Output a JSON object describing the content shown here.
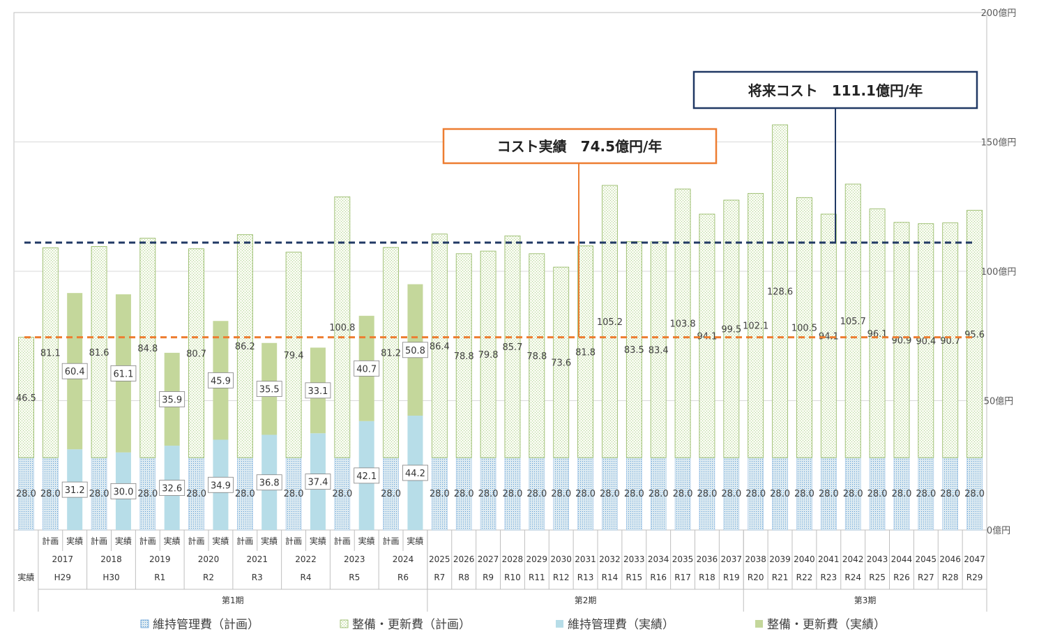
{
  "chart_data": {
    "type": "bar",
    "y_axis": {
      "ylim": [
        0,
        200
      ],
      "ticks": [
        0,
        50,
        100,
        150,
        200
      ],
      "tick_labels": [
        "0億円",
        "50億円",
        "100億円",
        "150億円",
        "200億円"
      ],
      "grid": true
    },
    "columns": [
      {
        "kind": "実績",
        "year": "",
        "era": "",
        "maint": 28.0,
        "renew": 46.5,
        "actual": false
      },
      {
        "kind": "計画",
        "year": "2017",
        "era": "H29",
        "maint": 28.0,
        "renew": 81.1,
        "actual": false
      },
      {
        "kind": "実績",
        "year": "2017",
        "era": "H29",
        "maint": 31.2,
        "renew": 60.4,
        "actual": true
      },
      {
        "kind": "計画",
        "year": "2018",
        "era": "H30",
        "maint": 28.0,
        "renew": 81.6,
        "actual": false
      },
      {
        "kind": "実績",
        "year": "2018",
        "era": "H30",
        "maint": 30.0,
        "renew": 61.1,
        "actual": true
      },
      {
        "kind": "計画",
        "year": "2019",
        "era": "R1",
        "maint": 28.0,
        "renew": 84.8,
        "actual": false
      },
      {
        "kind": "実績",
        "year": "2019",
        "era": "R1",
        "maint": 32.6,
        "renew": 35.9,
        "actual": true
      },
      {
        "kind": "計画",
        "year": "2020",
        "era": "R2",
        "maint": 28.0,
        "renew": 80.7,
        "actual": false
      },
      {
        "kind": "実績",
        "year": "2020",
        "era": "R2",
        "maint": 34.9,
        "renew": 45.9,
        "actual": true
      },
      {
        "kind": "計画",
        "year": "2021",
        "era": "R3",
        "maint": 28.0,
        "renew": 86.2,
        "actual": false
      },
      {
        "kind": "実績",
        "year": "2021",
        "era": "R3",
        "maint": 36.8,
        "renew": 35.5,
        "actual": true
      },
      {
        "kind": "計画",
        "year": "2022",
        "era": "R4",
        "maint": 28.0,
        "renew": 79.4,
        "actual": false
      },
      {
        "kind": "実績",
        "year": "2022",
        "era": "R4",
        "maint": 37.4,
        "renew": 33.1,
        "actual": true
      },
      {
        "kind": "計画",
        "year": "2023",
        "era": "R5",
        "maint": 28.0,
        "renew": 100.8,
        "actual": false
      },
      {
        "kind": "実績",
        "year": "2023",
        "era": "R5",
        "maint": 42.1,
        "renew": 40.7,
        "actual": true
      },
      {
        "kind": "計画",
        "year": "2024",
        "era": "R6",
        "maint": 28.0,
        "renew": 81.2,
        "actual": false
      },
      {
        "kind": "実績",
        "year": "2024",
        "era": "R6",
        "maint": 44.2,
        "renew": 50.8,
        "actual": true
      },
      {
        "kind": "",
        "year": "2025",
        "era": "R7",
        "maint": 28.0,
        "renew": 86.4,
        "actual": false
      },
      {
        "kind": "",
        "year": "2026",
        "era": "R8",
        "maint": 28.0,
        "renew": 78.8,
        "actual": false
      },
      {
        "kind": "",
        "year": "2027",
        "era": "R9",
        "maint": 28.0,
        "renew": 79.8,
        "actual": false
      },
      {
        "kind": "",
        "year": "2028",
        "era": "R10",
        "maint": 28.0,
        "renew": 85.7,
        "actual": false
      },
      {
        "kind": "",
        "year": "2029",
        "era": "R11",
        "maint": 28.0,
        "renew": 78.8,
        "actual": false
      },
      {
        "kind": "",
        "year": "2030",
        "era": "R12",
        "maint": 28.0,
        "renew": 73.6,
        "actual": false
      },
      {
        "kind": "",
        "year": "2031",
        "era": "R13",
        "maint": 28.0,
        "renew": 81.8,
        "actual": false
      },
      {
        "kind": "",
        "year": "2032",
        "era": "R14",
        "maint": 28.0,
        "renew": 105.2,
        "actual": false
      },
      {
        "kind": "",
        "year": "2033",
        "era": "R15",
        "maint": 28.0,
        "renew": 83.5,
        "actual": false
      },
      {
        "kind": "",
        "year": "2034",
        "era": "R16",
        "maint": 28.0,
        "renew": 83.4,
        "actual": false
      },
      {
        "kind": "",
        "year": "2035",
        "era": "R17",
        "maint": 28.0,
        "renew": 103.8,
        "actual": false
      },
      {
        "kind": "",
        "year": "2036",
        "era": "R18",
        "maint": 28.0,
        "renew": 94.1,
        "actual": false
      },
      {
        "kind": "",
        "year": "2037",
        "era": "R19",
        "maint": 28.0,
        "renew": 99.5,
        "actual": false
      },
      {
        "kind": "",
        "year": "2038",
        "era": "R20",
        "maint": 28.0,
        "renew": 102.1,
        "actual": false
      },
      {
        "kind": "",
        "year": "2039",
        "era": "R21",
        "maint": 28.0,
        "renew": 128.6,
        "actual": false
      },
      {
        "kind": "",
        "year": "2040",
        "era": "R22",
        "maint": 28.0,
        "renew": 100.5,
        "actual": false
      },
      {
        "kind": "",
        "year": "2041",
        "era": "R23",
        "maint": 28.0,
        "renew": 94.1,
        "actual": false
      },
      {
        "kind": "",
        "year": "2042",
        "era": "R24",
        "maint": 28.0,
        "renew": 105.7,
        "actual": false
      },
      {
        "kind": "",
        "year": "2043",
        "era": "R25",
        "maint": 28.0,
        "renew": 96.1,
        "actual": false
      },
      {
        "kind": "",
        "year": "2044",
        "era": "R26",
        "maint": 28.0,
        "renew": 90.9,
        "actual": false
      },
      {
        "kind": "",
        "year": "2045",
        "era": "R27",
        "maint": 28.0,
        "renew": 90.4,
        "actual": false
      },
      {
        "kind": "",
        "year": "2046",
        "era": "R28",
        "maint": 28.0,
        "renew": 90.7,
        "actual": false
      },
      {
        "kind": "",
        "year": "2047",
        "era": "R29",
        "maint": 28.0,
        "renew": 95.6,
        "actual": false
      }
    ],
    "periods": [
      {
        "label": "第1期",
        "from": 1,
        "to": 16
      },
      {
        "label": "第2期",
        "from": 17,
        "to": 29
      },
      {
        "label": "第3期",
        "from": 30,
        "to": 39
      }
    ],
    "reference_lines": [
      {
        "name": "将来コスト",
        "value": 111.1,
        "text": "将来コスト　111.1億円/年",
        "color": "#203864"
      },
      {
        "name": "コスト実績",
        "value": 74.5,
        "text": "コスト実績　74.5億円/年",
        "color": "#ED7D31"
      }
    ],
    "legend": {
      "placement": "bottom",
      "items": [
        {
          "label": "維持管理費（計画）",
          "key": "maint_plan"
        },
        {
          "label": "整備・更新費（計画）",
          "key": "renew_plan"
        },
        {
          "label": "維持管理費（実績）",
          "key": "maint_actual"
        },
        {
          "label": "整備・更新費（実績）",
          "key": "renew_actual"
        }
      ]
    },
    "colors": {
      "maint_plan": "#DCEAF1",
      "maint_plan_dot": "#5B9BD5",
      "renew_plan": "#F3F8E8",
      "renew_plan_dot": "#A9D08E",
      "renew_plan_border": "#8DB45A",
      "maint_actual": "#B7DDE8",
      "renew_actual": "#C4D79B",
      "future_line": "#203864",
      "actual_line": "#ED7D31"
    }
  }
}
